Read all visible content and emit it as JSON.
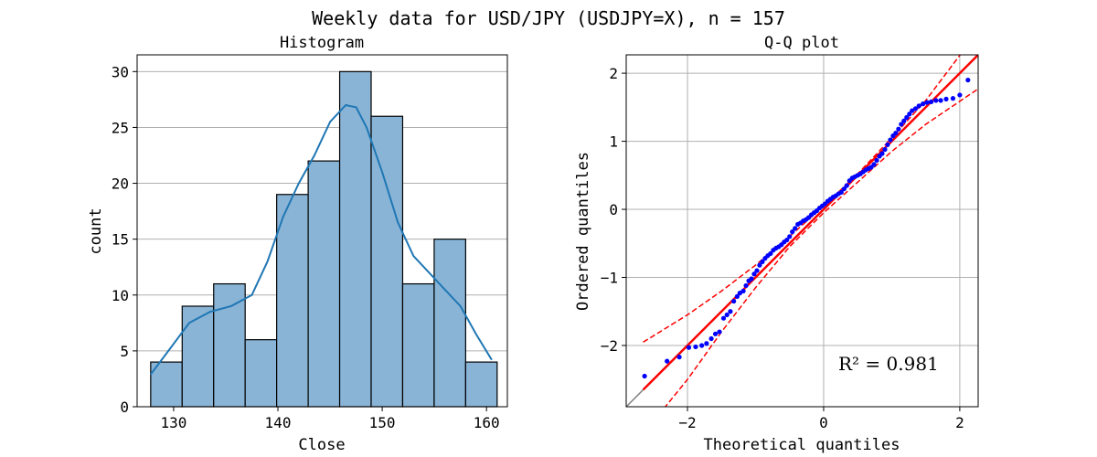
{
  "suptitle": "Weekly data for USD/JPY (USDJPY=X), n = 157",
  "chart_data": [
    {
      "type": "bar",
      "title": "Histogram",
      "xlabel": "Close",
      "ylabel": "count",
      "xlim": [
        126.5,
        162.0
      ],
      "ylim": [
        0,
        31.5
      ],
      "xticks": [
        130,
        140,
        150,
        160
      ],
      "yticks": [
        0,
        5,
        10,
        15,
        20,
        25,
        30
      ],
      "grid": "y",
      "bin_edges": [
        127.8,
        130.82,
        133.84,
        136.86,
        139.88,
        142.9,
        145.92,
        148.94,
        151.96,
        154.98,
        158.0,
        161.02
      ],
      "counts": [
        4,
        9,
        11,
        6,
        19,
        22,
        30,
        26,
        11,
        15,
        4
      ],
      "kde": {
        "x": [
          127.8,
          129.5,
          131.5,
          133.5,
          135.5,
          137.5,
          139.0,
          140.5,
          142.0,
          143.5,
          145.0,
          146.5,
          147.5,
          148.5,
          150.0,
          151.5,
          153.0,
          154.5,
          156.0,
          157.5,
          159.0,
          160.5
        ],
        "y": [
          2.9,
          5.0,
          7.5,
          8.5,
          9.0,
          10.0,
          13.0,
          17.0,
          20.0,
          22.5,
          25.5,
          27.0,
          26.8,
          25.0,
          21.0,
          16.5,
          13.5,
          12.0,
          10.5,
          9.0,
          6.5,
          4.2
        ]
      },
      "bar_color": "#89b4d6",
      "line_color": "#1f77b4"
    },
    {
      "type": "scatter",
      "title": "Q-Q plot",
      "xlabel": "Theoretical quantiles",
      "ylabel": "Ordered quantiles",
      "xlim": [
        -2.9,
        2.27
      ],
      "ylim": [
        -2.9,
        2.27
      ],
      "xticks": [
        -2,
        0,
        2
      ],
      "yticks": [
        -2,
        -1,
        0,
        1,
        2
      ],
      "grid": "both",
      "r_squared_label": "R² = 0.981",
      "fit_line": {
        "x": [
          -2.65,
          2.27
        ],
        "y": [
          -2.65,
          2.27
        ],
        "color": "#ff0000"
      },
      "reference_line": {
        "x": [
          -2.9,
          -2.6
        ],
        "y": [
          -2.9,
          -2.6
        ],
        "color": "#808080"
      },
      "confidence_band": {
        "x": [
          -2.65,
          -2.0,
          -1.5,
          -1.0,
          -0.5,
          0.0,
          0.5,
          1.0,
          1.5,
          2.27
        ],
        "upper": [
          -1.95,
          -1.55,
          -1.2,
          -0.82,
          -0.4,
          0.05,
          0.52,
          1.05,
          1.6,
          2.62
        ],
        "lower": [
          -3.3,
          -2.5,
          -1.8,
          -1.15,
          -0.55,
          -0.05,
          0.4,
          0.85,
          1.25,
          1.77
        ],
        "color": "#ff0000"
      },
      "points": {
        "x": [
          -2.63,
          -2.3,
          -2.12,
          -1.98,
          -1.88,
          -1.79,
          -1.72,
          -1.65,
          -1.59,
          -1.53,
          -1.47,
          -1.42,
          -1.37,
          -1.32,
          -1.27,
          -1.23,
          -1.18,
          -1.14,
          -1.1,
          -1.06,
          -1.02,
          -0.98,
          -0.94,
          -0.9,
          -0.86,
          -0.82,
          -0.78,
          -0.74,
          -0.7,
          -0.66,
          -0.62,
          -0.58,
          -0.54,
          -0.5,
          -0.46,
          -0.42,
          -0.38,
          -0.34,
          -0.3,
          -0.26,
          -0.22,
          -0.18,
          -0.14,
          -0.1,
          -0.06,
          -0.02,
          0.02,
          0.06,
          0.1,
          0.14,
          0.18,
          0.22,
          0.26,
          0.3,
          0.34,
          0.38,
          0.42,
          0.46,
          0.5,
          0.54,
          0.58,
          0.62,
          0.66,
          0.7,
          0.74,
          0.78,
          0.82,
          0.86,
          0.9,
          0.94,
          0.98,
          1.02,
          1.06,
          1.1,
          1.14,
          1.18,
          1.22,
          1.26,
          1.3,
          1.35,
          1.4,
          1.46,
          1.52,
          1.58,
          1.65,
          1.72,
          1.8,
          1.9,
          2.0,
          2.12
        ],
        "y": [
          -2.45,
          -2.23,
          -2.17,
          -2.03,
          -2.02,
          -2.0,
          -1.97,
          -1.9,
          -1.83,
          -1.8,
          -1.6,
          -1.55,
          -1.5,
          -1.35,
          -1.28,
          -1.23,
          -1.2,
          -1.12,
          -1.05,
          -1.02,
          -0.95,
          -0.9,
          -0.82,
          -0.77,
          -0.72,
          -0.68,
          -0.65,
          -0.6,
          -0.57,
          -0.55,
          -0.52,
          -0.48,
          -0.45,
          -0.4,
          -0.33,
          -0.28,
          -0.22,
          -0.2,
          -0.17,
          -0.15,
          -0.12,
          -0.08,
          -0.05,
          -0.02,
          0.02,
          0.05,
          0.08,
          0.12,
          0.15,
          0.18,
          0.2,
          0.23,
          0.25,
          0.3,
          0.35,
          0.42,
          0.46,
          0.48,
          0.5,
          0.52,
          0.55,
          0.58,
          0.6,
          0.62,
          0.66,
          0.72,
          0.78,
          0.82,
          0.88,
          0.95,
          1.02,
          1.08,
          1.12,
          1.18,
          1.25,
          1.3,
          1.35,
          1.4,
          1.45,
          1.48,
          1.52,
          1.55,
          1.57,
          1.58,
          1.6,
          1.6,
          1.62,
          1.63,
          1.68,
          1.9
        ],
        "color": "#0000ff"
      }
    }
  ]
}
